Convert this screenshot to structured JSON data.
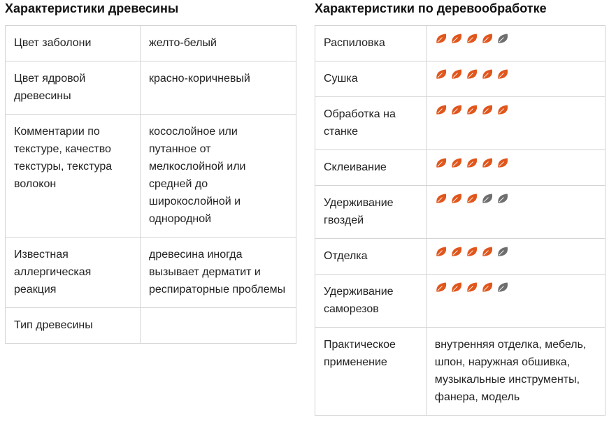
{
  "wood": {
    "title": "Характеристики древесины",
    "rows": [
      [
        "Цвет заболони",
        "желто-белый"
      ],
      [
        "Цвет ядровой древесины",
        "красно-коричневый"
      ],
      [
        "Комментарии по текстуре, качество текстуры, текстура волокон",
        "косослойное или путанное от мелкослойной или средней до широкослойной и однородной"
      ],
      [
        "Известная аллергическая реакция",
        "древесина иногда вызывает дерматит и респираторные проблемы"
      ],
      [
        "Тип древесины"
      ]
    ]
  },
  "working": {
    "title": "Характеристики по деревообработке",
    "rating_max": 5,
    "ratings": [
      {
        "label": "Распиловка",
        "value": 4
      },
      {
        "label": "Сушка",
        "value": 5
      },
      {
        "label": "Обработка на станке",
        "value": 5
      },
      {
        "label": "Склеивание",
        "value": 5
      },
      {
        "label": "Удерживание гвоздей",
        "value": 3
      },
      {
        "label": "Отделка",
        "value": 4
      },
      {
        "label": "Удерживание саморезов",
        "value": 4
      }
    ],
    "usage": {
      "label": "Практическое применение",
      "value": "внутренняя отделка, мебель, шпон, наружная обшивка, музыкальные инструменты, фанера, модель"
    }
  }
}
